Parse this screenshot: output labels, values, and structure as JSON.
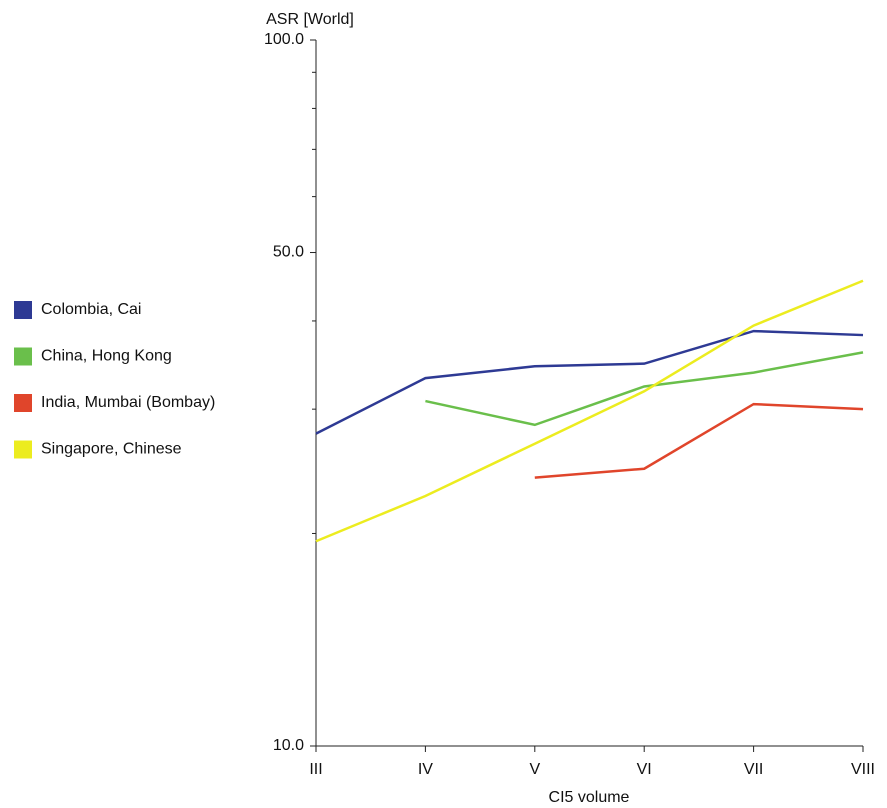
{
  "chart_data": {
    "type": "line",
    "y_label": "ASR [World]",
    "x_label": "CI5 volume",
    "categories": [
      "III",
      "IV",
      "V",
      "VI",
      "VII",
      "VIII"
    ],
    "log_scale": true,
    "ylim": [
      10,
      100
    ],
    "yticks": [
      {
        "value": 10,
        "label": "10.0"
      },
      {
        "value": 50,
        "label": "50.0"
      },
      {
        "value": 100,
        "label": "100.0"
      }
    ],
    "yminor_ticks": [
      20,
      30,
      40,
      60,
      70,
      80,
      90
    ],
    "legend": "left",
    "series": [
      {
        "name": "Colombia, Cai",
        "color": "#2e3a94",
        "values": [
          27.7,
          33.2,
          34.5,
          34.8,
          38.7,
          38.2
        ]
      },
      {
        "name": "China, Hong Kong",
        "color": "#6abf4b",
        "values": [
          null,
          30.8,
          28.5,
          32.3,
          33.8,
          36.1
        ]
      },
      {
        "name": "India, Mumbai (Bombay)",
        "color": "#e0452b",
        "values": [
          null,
          null,
          24.0,
          24.7,
          30.5,
          30.0
        ]
      },
      {
        "name": "Singapore, Chinese",
        "color": "#ecec1f",
        "values": [
          19.5,
          22.6,
          26.8,
          31.8,
          39.4,
          45.6
        ]
      }
    ]
  }
}
